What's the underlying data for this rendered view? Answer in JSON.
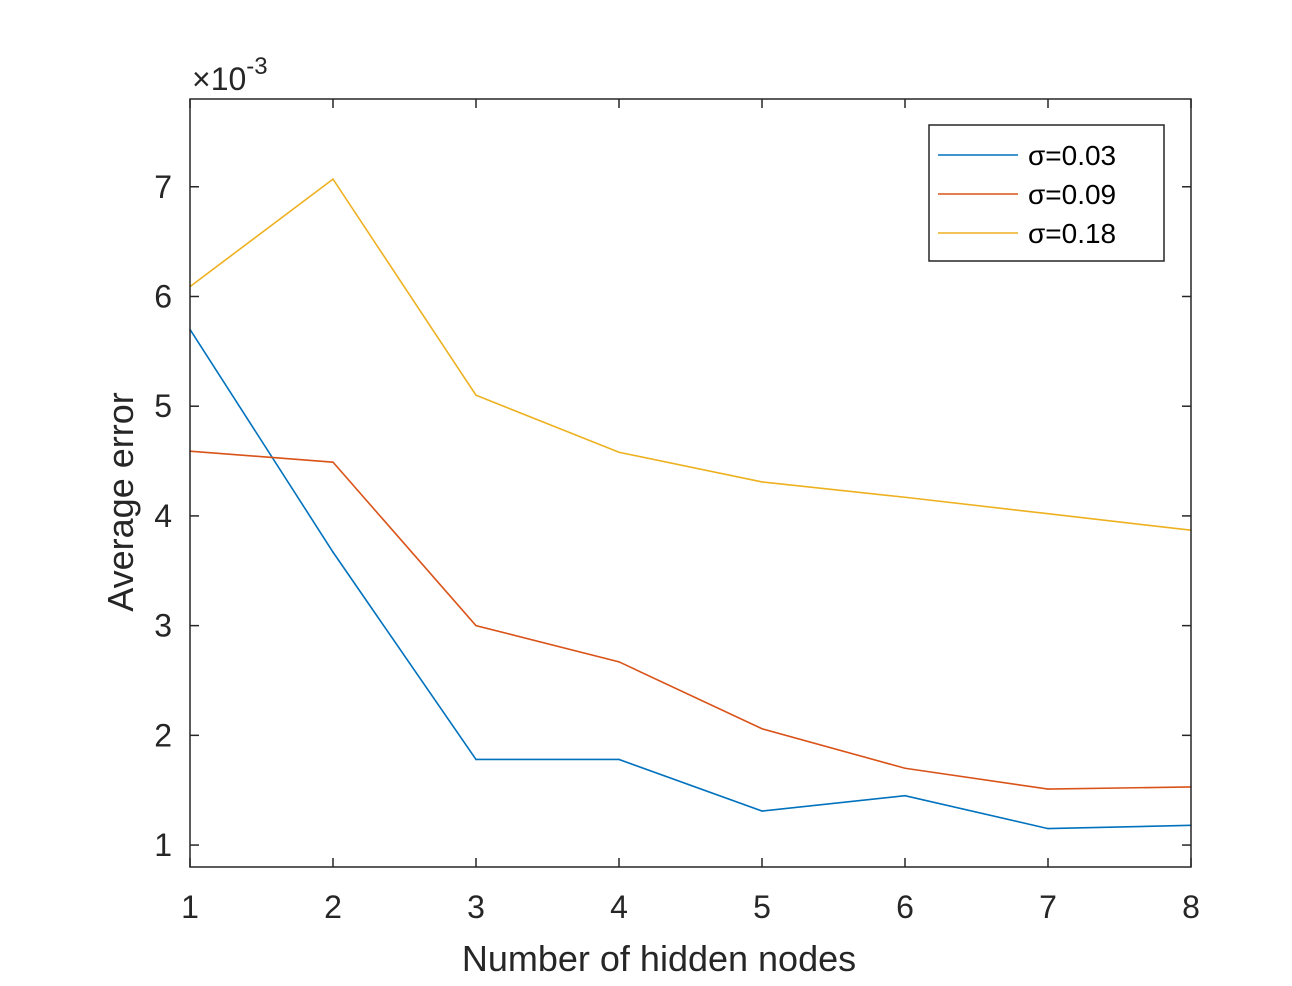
{
  "chart_data": {
    "type": "line",
    "x": [
      1,
      2,
      3,
      4,
      5,
      6,
      7,
      8
    ],
    "series": [
      {
        "name": "σ=0.03",
        "color": "#0072BD",
        "values": [
          5.7,
          3.67,
          1.78,
          1.78,
          1.31,
          1.45,
          1.15,
          1.18
        ]
      },
      {
        "name": "σ=0.09",
        "color": "#D95319",
        "values": [
          4.59,
          4.49,
          3.0,
          2.67,
          2.06,
          1.7,
          1.51,
          1.53
        ]
      },
      {
        "name": "σ=0.18",
        "color": "#EDB120",
        "values": [
          6.09,
          7.07,
          5.1,
          4.58,
          4.31,
          4.17,
          4.02,
          3.87
        ]
      }
    ],
    "xlabel": "Number of hidden nodes",
    "ylabel": "Average error",
    "xlim": [
      1,
      8
    ],
    "ylim": [
      0.8,
      7.8
    ],
    "xticks": [
      1,
      2,
      3,
      4,
      5,
      6,
      7,
      8
    ],
    "yticks": [
      1,
      2,
      3,
      4,
      5,
      6,
      7
    ],
    "y_scale_label": "×10",
    "y_scale_exponent": "-3",
    "legend_position": "top-right",
    "grid": false
  }
}
